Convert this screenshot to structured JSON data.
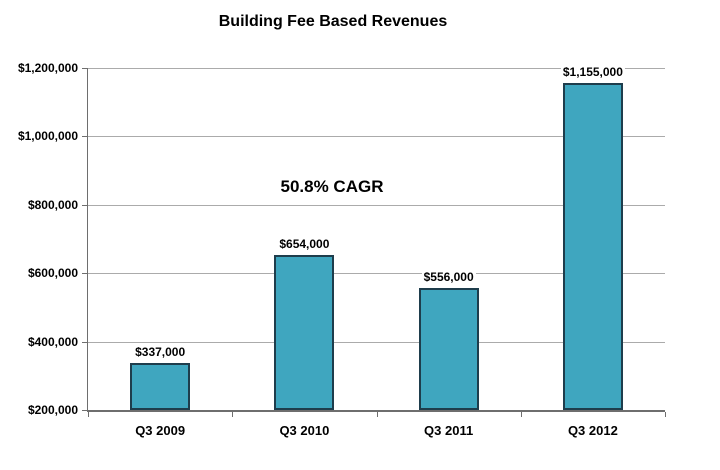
{
  "chart_data": {
    "type": "bar",
    "title": "Building Fee Based Revenues",
    "annotation": "50.8% CAGR",
    "categories": [
      "Q3 2009",
      "Q3 2010",
      "Q3 2011",
      "Q3 2012"
    ],
    "values": [
      337000,
      654000,
      556000,
      1155000
    ],
    "value_labels": [
      "$337,000",
      "$654,000",
      "$556,000",
      "$1,155,000"
    ],
    "ylim": [
      200000,
      1200000
    ],
    "ytick_step": 200000,
    "ytick_labels": [
      "$200,000",
      "$400,000",
      "$600,000",
      "$800,000",
      "$1,000,000",
      "$1,200,000"
    ],
    "xlabel": "",
    "ylabel": "",
    "grid": true,
    "legend": "none",
    "colors": {
      "bar_fill": "#3FA6BF",
      "bar_border": "#1E3D4C",
      "gridline": "#ABABAB",
      "axis": "#6E6E6E",
      "text": "#000000",
      "background": "#FFFFFF"
    }
  }
}
